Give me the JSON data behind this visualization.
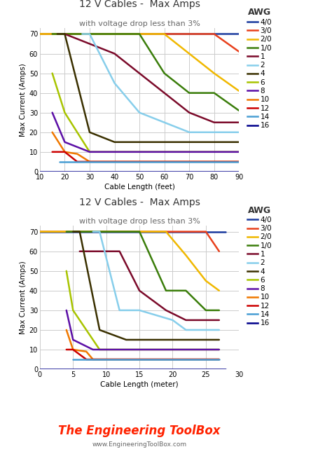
{
  "title": "12 V Cables -  Max Amps",
  "subtitle": "with voltage drop less than 3%",
  "legend_title": "AWG",
  "ylabel": "Max Current (Amps)",
  "xlabel_feet": "Cable Length (feet)",
  "xlabel_meter": "Cable Length (meter)",
  "watermark1": "The Engineering ToolBox",
  "watermark2": "www.EngineeringToolBox.com",
  "series": [
    {
      "label": "4/0",
      "color": "#1a3a9e"
    },
    {
      "label": "3/0",
      "color": "#e8401c"
    },
    {
      "label": "2/0",
      "color": "#f0b800"
    },
    {
      "label": "1/0",
      "color": "#3a7d0a"
    },
    {
      "label": "1",
      "color": "#7b0a2a"
    },
    {
      "label": "2",
      "color": "#87ceeb"
    },
    {
      "label": "4",
      "color": "#3a3000"
    },
    {
      "label": "6",
      "color": "#a8c400"
    },
    {
      "label": "8",
      "color": "#5b0ea6"
    },
    {
      "label": "10",
      "color": "#f07800"
    },
    {
      "label": "12",
      "color": "#cc0000"
    },
    {
      "label": "14",
      "color": "#4a9fd4"
    },
    {
      "label": "16",
      "color": "#00008b"
    }
  ],
  "data_feet": {
    "4/0": {
      "x": [
        10,
        90
      ],
      "y": [
        70,
        70
      ]
    },
    "3/0": {
      "x": [
        10,
        80,
        90
      ],
      "y": [
        70,
        70,
        61
      ]
    },
    "2/0": {
      "x": [
        10,
        60,
        70,
        80,
        90
      ],
      "y": [
        70,
        70,
        60,
        50,
        41
      ]
    },
    "1/0": {
      "x": [
        15,
        20,
        50,
        60,
        70,
        80,
        90
      ],
      "y": [
        70,
        70,
        70,
        50,
        40,
        40,
        31
      ]
    },
    "1": {
      "x": [
        20,
        40,
        50,
        60,
        70,
        80,
        90
      ],
      "y": [
        70,
        60,
        50,
        40,
        30,
        25,
        25
      ]
    },
    "2": {
      "x": [
        27,
        30,
        40,
        50,
        60,
        70,
        80,
        90
      ],
      "y": [
        70,
        70,
        45,
        30,
        25,
        20,
        20,
        20
      ]
    },
    "4": {
      "x": [
        17,
        20,
        30,
        40,
        90
      ],
      "y": [
        70,
        70,
        20,
        15,
        15
      ]
    },
    "6": {
      "x": [
        15,
        20,
        25,
        30,
        90
      ],
      "y": [
        50,
        30,
        20,
        10,
        10
      ]
    },
    "8": {
      "x": [
        15,
        20,
        30,
        90
      ],
      "y": [
        30,
        15,
        10,
        10
      ]
    },
    "10": {
      "x": [
        15,
        20,
        25,
        30,
        90
      ],
      "y": [
        20,
        10,
        9,
        5,
        5
      ]
    },
    "12": {
      "x": [
        15,
        20,
        25,
        90
      ],
      "y": [
        10,
        10,
        5,
        5
      ]
    },
    "14": {
      "x": [
        18,
        22,
        90
      ],
      "y": [
        5,
        5,
        5
      ]
    },
    "16": {
      "x": [
        10,
        90
      ],
      "y": [
        0,
        0
      ]
    }
  },
  "data_meter": {
    "4/0": {
      "x": [
        0,
        28
      ],
      "y": [
        70,
        70
      ]
    },
    "3/0": {
      "x": [
        0,
        25,
        27
      ],
      "y": [
        70,
        70,
        60
      ]
    },
    "2/0": {
      "x": [
        0,
        19,
        22,
        25,
        27
      ],
      "y": [
        70,
        70,
        58,
        45,
        40
      ]
    },
    "1/0": {
      "x": [
        4,
        5,
        15,
        19,
        22,
        25,
        27
      ],
      "y": [
        70,
        70,
        70,
        40,
        40,
        30,
        30
      ]
    },
    "1": {
      "x": [
        6,
        12,
        15,
        19,
        22,
        25,
        27
      ],
      "y": [
        60,
        60,
        40,
        30,
        25,
        25,
        25
      ]
    },
    "2": {
      "x": [
        8,
        9,
        12,
        15,
        20,
        22,
        25,
        27
      ],
      "y": [
        70,
        70,
        30,
        30,
        25,
        20,
        20,
        20
      ]
    },
    "4": {
      "x": [
        5,
        6,
        9,
        13,
        27
      ],
      "y": [
        70,
        70,
        20,
        15,
        15
      ]
    },
    "6": {
      "x": [
        4,
        5,
        7,
        9,
        27
      ],
      "y": [
        50,
        30,
        20,
        10,
        10
      ]
    },
    "8": {
      "x": [
        4,
        5,
        8,
        27
      ],
      "y": [
        30,
        15,
        10,
        10
      ]
    },
    "10": {
      "x": [
        4,
        5,
        7,
        8,
        27
      ],
      "y": [
        20,
        10,
        9,
        5,
        5
      ]
    },
    "12": {
      "x": [
        4,
        5,
        7,
        27
      ],
      "y": [
        10,
        10,
        5,
        5
      ]
    },
    "14": {
      "x": [
        5,
        6,
        27
      ],
      "y": [
        5,
        5,
        5
      ]
    },
    "16": {
      "x": [
        0,
        28
      ],
      "y": [
        0,
        0
      ]
    }
  },
  "ylim": [
    0,
    73
  ],
  "xlim_feet": [
    10,
    90
  ],
  "xlim_meter": [
    0,
    30
  ],
  "xticks_feet": [
    10,
    20,
    30,
    40,
    50,
    60,
    70,
    80,
    90
  ],
  "xticks_meter": [
    0,
    5,
    10,
    15,
    20,
    25,
    30
  ],
  "yticks": [
    0,
    10,
    20,
    30,
    40,
    50,
    60,
    70
  ],
  "bg_color": "#ffffff",
  "grid_color": "#cccccc",
  "title_fontsize": 10,
  "subtitle_fontsize": 8,
  "axis_fontsize": 7.5,
  "tick_fontsize": 7,
  "legend_fontsize": 7.5,
  "legend_title_fontsize": 9,
  "linewidth": 1.8
}
